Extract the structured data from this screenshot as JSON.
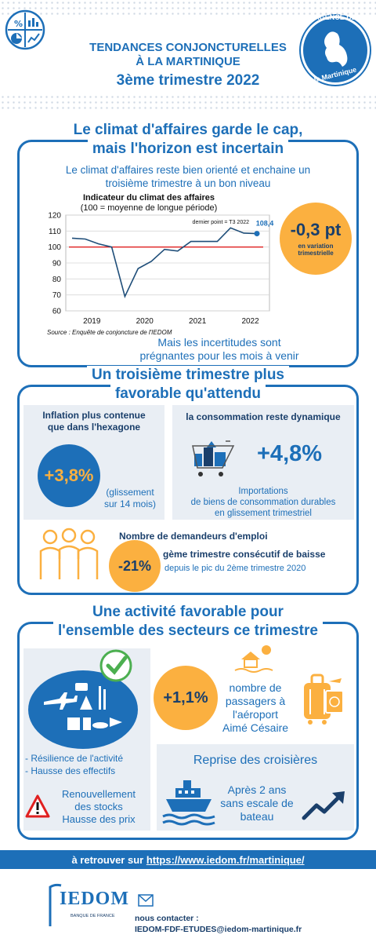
{
  "header": {
    "title_line1": "TENDANCES CONJONCTURELLES",
    "title_line2": "À LA MARTINIQUE",
    "title_line3": "3ème trimestre 2022",
    "badge_top": "AGENCE DE",
    "badge_bottom": "la Martinique"
  },
  "section1": {
    "title_line1": "Le climat d'affaires garde le cap,",
    "title_line2": "mais l'horizon est incertain",
    "intro_line1": "Le climat d'affaires reste bien orienté et enchaine un",
    "intro_line2": "troisième trimestre à un bon niveau",
    "kpi_value": "-0,3 pt",
    "kpi_label_line1": "en variation",
    "kpi_label_line2": "trimestrielle",
    "note_line1": "Mais les incertitudes sont",
    "note_line2": "prégnantes pour les mois à venir"
  },
  "chart_data": {
    "type": "line",
    "title": "Indicateur du climat des affaires",
    "subtitle": "(100 = moyenne de longue période)",
    "annotation": "dernier point = T3 2022",
    "last_value_label": "108,4",
    "source": "Source : Enquête de conjoncture de l'IEDOM",
    "ylim": [
      60,
      120
    ],
    "y_ticks": [
      "120",
      "110",
      "100",
      "90",
      "80",
      "70",
      "60"
    ],
    "x_tick_labels": [
      "2019",
      "2020",
      "2021",
      "2022"
    ],
    "reference_line": 100,
    "series": [
      {
        "values": [
          105.5,
          105,
          102,
          100,
          69,
          86.5,
          91,
          98.5,
          97.5,
          103.5,
          103.5,
          103.5,
          112,
          108.7,
          108.4
        ]
      }
    ],
    "colors": {
      "line": "#1f4e79",
      "reference": "#e02020",
      "marker": "#1d6fb8"
    }
  },
  "section2": {
    "title_line1": "Un troisième trimestre plus",
    "title_line2": "favorable qu'attendu",
    "inflation_title_line1": "Inflation plus contenue",
    "inflation_title_line2": "que dans l'hexagone",
    "inflation_value": "+3,8%",
    "inflation_note_line1": "(glissement",
    "inflation_note_line2": "sur 14 mois)",
    "conso_title": "la consommation reste dynamique",
    "conso_value": "+4,8%",
    "conso_note_line1": "Importations",
    "conso_note_line2": "de biens de consommation durables",
    "conso_note_line3": "en glissement trimestriel",
    "emploi_title": "Nombre de demandeurs d'emploi",
    "emploi_value": "-21%",
    "emploi_line1": "gème trimestre consécutif de baisse",
    "emploi_line2": "depuis le pic du 2ème trimestre 2020"
  },
  "section3": {
    "title_line1": "Une activité favorable pour",
    "title_line2": "l'ensemble des secteurs ce trimestre",
    "bullet1": "- Résilience de l'activité",
    "bullet2": "- Hausse des effectifs",
    "warn_line1": "Renouvellement",
    "warn_line2": "des stocks",
    "warn_line3": "Hausse des prix",
    "air_value": "+1,1%",
    "air_line1": "nombre de",
    "air_line2": "passagers à",
    "air_line3": "l'aéroport",
    "air_line4": "Aimé Césaire",
    "cruise_title": "Reprise des croisières",
    "cruise_line1": "Après 2 ans",
    "cruise_line2": "sans escale de",
    "cruise_line3": "bateau"
  },
  "footer": {
    "link_prefix": "à retrouver sur ",
    "link_url": "https://www.iedom.fr/martinique/",
    "logo_text": "IEDOM",
    "logo_sub": "BANQUE DE FRANCE",
    "contact_label": "nous contacter :",
    "contact_email": "IEDOM-FDF-ETUDES@iedom-martinique.fr"
  }
}
